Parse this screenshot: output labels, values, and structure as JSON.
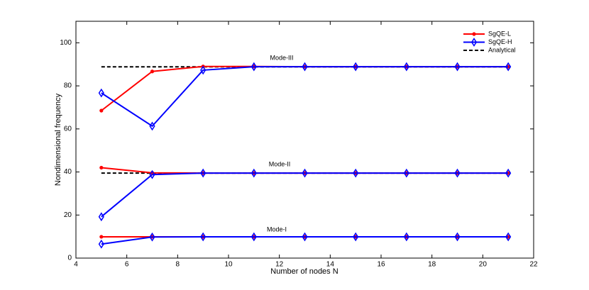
{
  "chart_data": {
    "type": "line",
    "xlabel": "Number of nodes N",
    "ylabel": "Nondimensional frequency",
    "x": [
      5,
      7,
      9,
      11,
      13,
      15,
      17,
      19,
      21
    ],
    "series": [
      {
        "name": "SgQE-L",
        "color": "#ff0000",
        "marker": "circle",
        "dashed": false,
        "values": [
          [
            9.9,
            9.9,
            9.87,
            9.87,
            9.87,
            9.87,
            9.87,
            9.87,
            9.87
          ],
          [
            42.0,
            39.6,
            39.5,
            39.48,
            39.48,
            39.48,
            39.48,
            39.48,
            39.48
          ],
          [
            68.5,
            86.7,
            89.0,
            89.0,
            88.9,
            88.9,
            88.9,
            88.9,
            88.9
          ]
        ]
      },
      {
        "name": "SgQE-H",
        "color": "#0000ff",
        "marker": "diamond",
        "dashed": false,
        "values": [
          [
            6.5,
            9.8,
            9.87,
            9.87,
            9.87,
            9.87,
            9.87,
            9.87,
            9.87
          ],
          [
            19.2,
            38.8,
            39.5,
            39.48,
            39.48,
            39.48,
            39.48,
            39.48,
            39.48
          ],
          [
            76.7,
            61.3,
            87.3,
            88.9,
            88.9,
            88.9,
            88.9,
            88.9,
            88.9
          ]
        ]
      },
      {
        "name": "Analytical",
        "color": "#000000",
        "marker": "none",
        "dashed": true,
        "values": [
          [
            9.87,
            9.87,
            9.87,
            9.87,
            9.87,
            9.87,
            9.87,
            9.87,
            9.87
          ],
          [
            39.48,
            39.48,
            39.48,
            39.48,
            39.48,
            39.48,
            39.48,
            39.48,
            39.48
          ],
          [
            88.83,
            88.83,
            88.83,
            88.83,
            88.83,
            88.83,
            88.83,
            88.83,
            88.83
          ]
        ]
      }
    ],
    "annotations": [
      "Mode-I",
      "Mode-II",
      "Mode-III"
    ],
    "xlim": [
      4,
      22
    ],
    "xticks": [
      4,
      6,
      8,
      10,
      12,
      14,
      16,
      18,
      20,
      22
    ],
    "ylim": [
      0,
      110
    ],
    "yticks": [
      0,
      20,
      40,
      60,
      80,
      100
    ],
    "grid": false,
    "legend": "northeast"
  }
}
